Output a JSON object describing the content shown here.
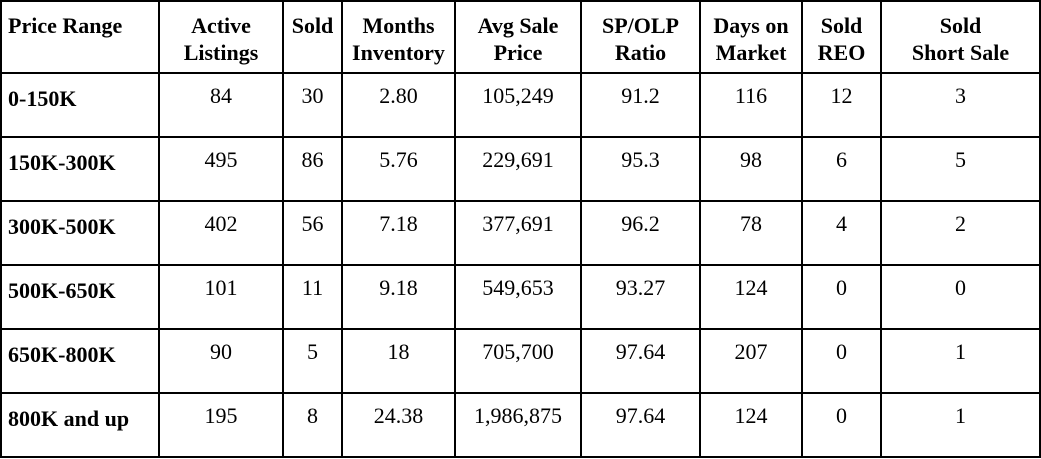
{
  "headers": [
    [
      "Price Range"
    ],
    [
      "Active",
      "Listings"
    ],
    [
      "Sold"
    ],
    [
      "Months",
      "Inventory"
    ],
    [
      "Avg Sale",
      "Price"
    ],
    [
      "SP/OLP",
      "Ratio"
    ],
    [
      "Days on",
      "Market"
    ],
    [
      "Sold",
      "REO"
    ],
    [
      "Sold",
      "Short Sale"
    ]
  ],
  "rows": [
    [
      "0-150K",
      "84",
      "30",
      "2.80",
      "105,249",
      "91.2",
      "116",
      "12",
      "3"
    ],
    [
      "150K-300K",
      "495",
      "86",
      "5.76",
      "229,691",
      "95.3",
      "98",
      "6",
      "5"
    ],
    [
      "300K-500K",
      "402",
      "56",
      "7.18",
      "377,691",
      "96.2",
      "78",
      "4",
      "2"
    ],
    [
      "500K-650K",
      "101",
      "11",
      "9.18",
      "549,653",
      "93.27",
      "124",
      "0",
      "0"
    ],
    [
      "650K-800K",
      "90",
      "5",
      "18",
      "705,700",
      "97.64",
      "207",
      "0",
      "1"
    ],
    [
      "800K and up",
      "195",
      "8",
      "24.38",
      "1,986,875",
      "97.64",
      "124",
      "0",
      "1"
    ]
  ]
}
